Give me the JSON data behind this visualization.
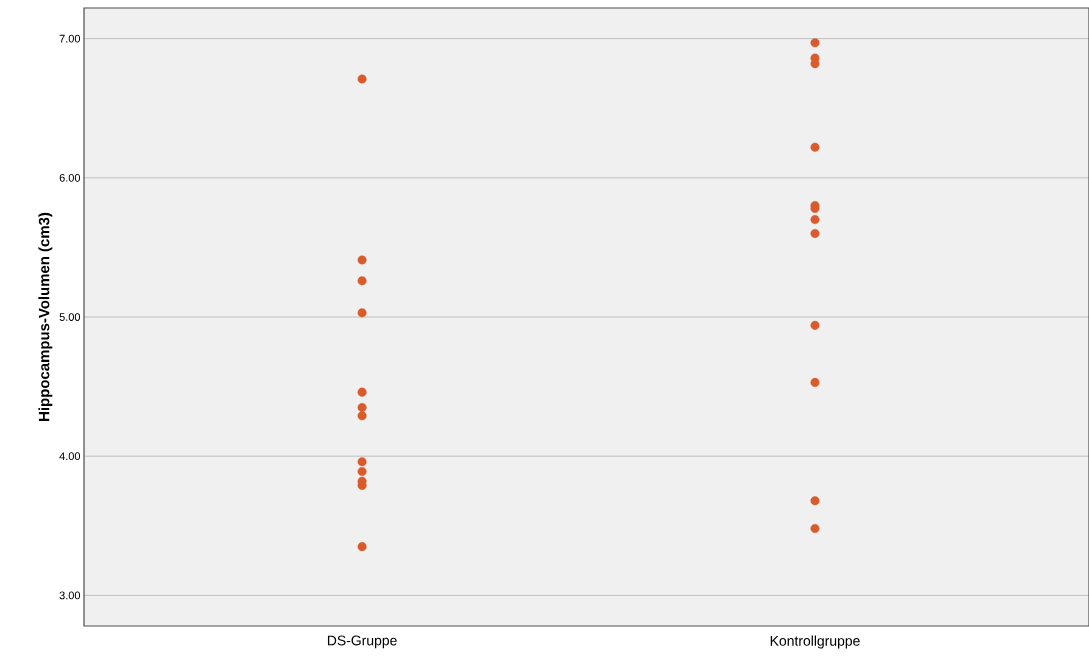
{
  "chart_data": {
    "type": "scatter",
    "ylabel": "Hippocampus-Volumen (cm3)",
    "categories": [
      "DS-Gruppe",
      "Kontrollgruppe"
    ],
    "series": [
      {
        "color": "#d95a2b",
        "x": [
          "DS-Gruppe",
          "DS-Gruppe",
          "DS-Gruppe",
          "DS-Gruppe",
          "DS-Gruppe",
          "DS-Gruppe",
          "DS-Gruppe",
          "DS-Gruppe",
          "DS-Gruppe",
          "DS-Gruppe",
          "DS-Gruppe",
          "DS-Gruppe",
          "Kontrollgruppe",
          "Kontrollgruppe",
          "Kontrollgruppe",
          "Kontrollgruppe",
          "Kontrollgruppe",
          "Kontrollgruppe",
          "Kontrollgruppe",
          "Kontrollgruppe",
          "Kontrollgruppe",
          "Kontrollgruppe",
          "Kontrollgruppe",
          "Kontrollgruppe"
        ],
        "values": [
          6.71,
          5.41,
          5.26,
          5.03,
          4.46,
          4.35,
          4.29,
          3.96,
          3.89,
          3.82,
          3.79,
          3.35,
          6.97,
          6.86,
          6.82,
          6.22,
          5.8,
          5.78,
          5.7,
          5.6,
          4.94,
          4.53,
          3.68,
          3.48
        ]
      }
    ],
    "ylim": [
      2.78,
      7.22
    ],
    "yticks": [
      {
        "value": 3,
        "label": "3.00"
      },
      {
        "value": 4,
        "label": "4.00"
      },
      {
        "value": 5,
        "label": "5.00"
      },
      {
        "value": 6,
        "label": "6.00"
      },
      {
        "value": 7,
        "label": "7.00"
      }
    ],
    "grid": "y",
    "marker": "circle"
  }
}
